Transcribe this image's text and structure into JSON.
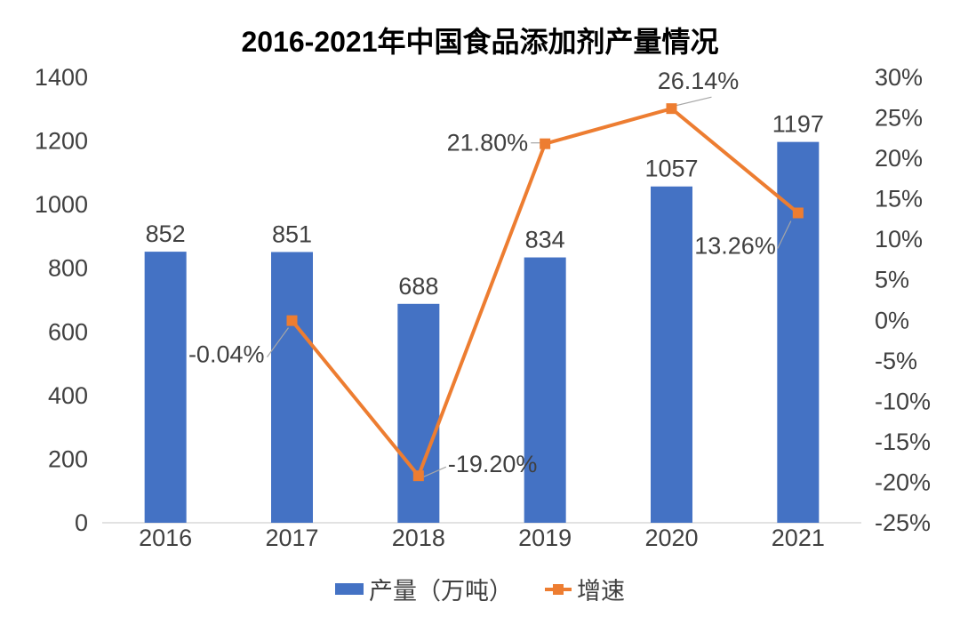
{
  "chart_data": {
    "type": "bar+line combo",
    "title": "2016-2021年中国食品添加剂产量情况",
    "categories": [
      "2016",
      "2017",
      "2018",
      "2019",
      "2020",
      "2021"
    ],
    "series": [
      {
        "name": "产量（万吨）",
        "type": "bar",
        "axis": "left",
        "color": "#4472C4",
        "values": [
          852,
          851,
          688,
          834,
          1057,
          1197
        ],
        "labels": [
          "852",
          "851",
          "688",
          "834",
          "1057",
          "1197"
        ]
      },
      {
        "name": "增速",
        "type": "line",
        "axis": "right",
        "color": "#ED7D31",
        "values": [
          null,
          -0.04,
          -19.2,
          21.8,
          26.14,
          13.26
        ],
        "labels": [
          null,
          "-0.04%",
          "-19.20%",
          "21.80%",
          "26.14%",
          "13.26%"
        ]
      }
    ],
    "left_axis": {
      "min": 0,
      "max": 1400,
      "step": 200,
      "ticks": [
        "1400",
        "1200",
        "1000",
        "800",
        "600",
        "400",
        "200",
        "0"
      ]
    },
    "right_axis": {
      "min": -25,
      "max": 30,
      "step": 5,
      "ticks": [
        "30%",
        "25%",
        "20%",
        "15%",
        "10%",
        "5%",
        "0%",
        "-5%",
        "-10%",
        "-15%",
        "-20%",
        "-25%"
      ]
    },
    "grid": false,
    "legend_position": "bottom"
  },
  "colors": {
    "background": "#ffffff",
    "text": "#404040",
    "title_text": "#000000",
    "axis_line": "#d9d9d9",
    "leader_line": "#a6a6a6"
  }
}
